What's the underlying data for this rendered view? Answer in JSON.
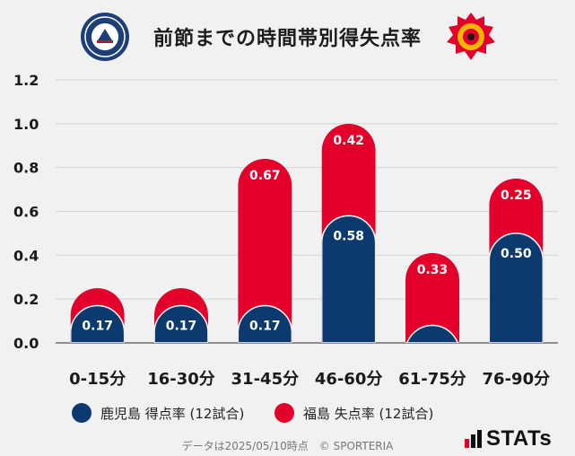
{
  "header": {
    "title": "前節までの時間帯別得失点率",
    "logo_left_text": "KAGOSHIMA UNITED F.C.",
    "logo_right_text": "FUKUSHIMA UNITED"
  },
  "chart_data": {
    "type": "bar",
    "stacked": true,
    "categories": [
      "0-15分",
      "16-30分",
      "31-45分",
      "46-60分",
      "61-75分",
      "76-90分"
    ],
    "series": [
      {
        "name": "鹿児島 得点率 (12試合)",
        "color": "#0c3a6e",
        "values": [
          0.17,
          0.17,
          0.17,
          0.58,
          0.08,
          0.5
        ],
        "labels": [
          "0.17",
          "0.17",
          "0.17",
          "0.58",
          "",
          "0.50"
        ]
      },
      {
        "name": "福島 失点率 (12試合)",
        "color": "#e3002a",
        "values": [
          0.08,
          0.08,
          0.67,
          0.42,
          0.33,
          0.25
        ],
        "labels": [
          "",
          "",
          "0.67",
          "0.42",
          "0.33",
          "0.25"
        ]
      }
    ],
    "yticks": [
      "0.0",
      "0.2",
      "0.4",
      "0.6",
      "0.8",
      "1.0",
      "1.2"
    ],
    "ylim": [
      0,
      1.2
    ],
    "grid": true,
    "legend_position": "bottom"
  },
  "legend": [
    {
      "label": "鹿児島 得点率 (12試合)",
      "color": "#0c3a6e"
    },
    {
      "label": "福島 失点率 (12試合)",
      "color": "#e3002a"
    }
  ],
  "footer": {
    "text": "データは2025/05/10時点　© SPORTERIA"
  },
  "brand": {
    "name": "STATs"
  }
}
